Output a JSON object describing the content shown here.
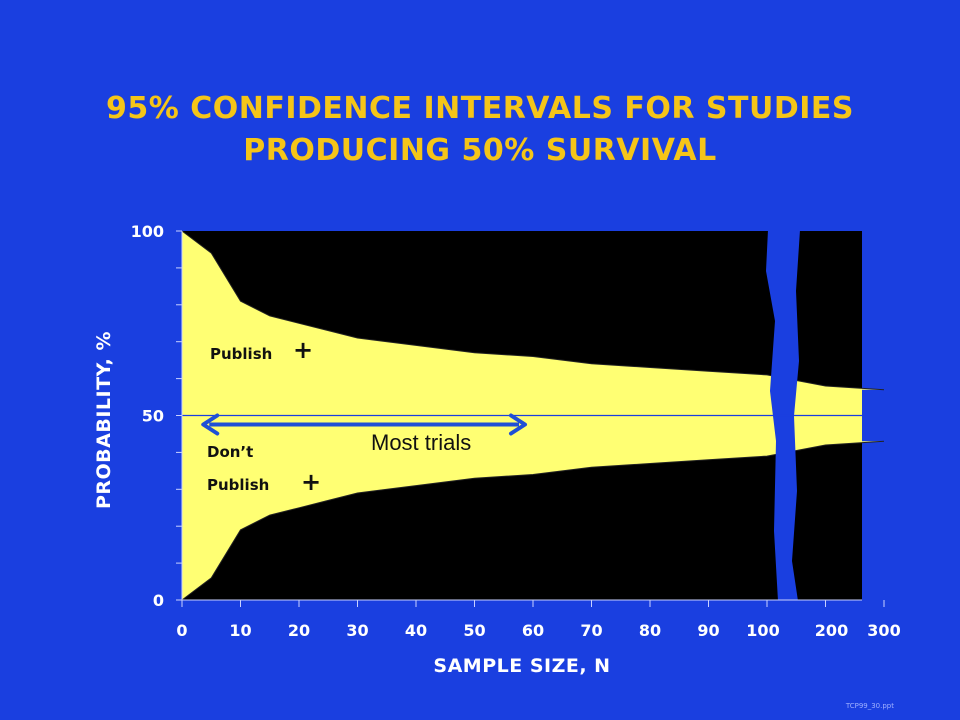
{
  "title": {
    "line1": "95% CONFIDENCE INTERVALS FOR STUDIES",
    "line2": "PRODUCING 50% SURVIVAL"
  },
  "footer_ref": "TCP99_30.ppt",
  "colors": {
    "background": "#1a3fe0",
    "title": "#f5c518",
    "band": "#ffff73",
    "outside": "#000000",
    "arrow": "#1f4fd6",
    "axis_text": "#ffffff"
  },
  "chart_data": {
    "type": "area",
    "title": "95% CONFIDENCE INTERVALS FOR STUDIES PRODUCING 50% SURVIVAL",
    "xlabel": "SAMPLE SIZE, N",
    "ylabel": "PROBABILITY, %",
    "ylim": [
      0,
      100
    ],
    "yticks": [
      "0",
      "50",
      "100"
    ],
    "xtick_labels": [
      "0",
      "10",
      "20",
      "30",
      "40",
      "50",
      "60",
      "70",
      "80",
      "90",
      "100",
      "200",
      "300"
    ],
    "x_axis_break": "between 100 and 200",
    "reference_line_y": 50,
    "series": [
      {
        "name": "upper 95% limit",
        "x": [
          0,
          5,
          10,
          15,
          20,
          25,
          30,
          40,
          50,
          60,
          70,
          80,
          90,
          100,
          200,
          300
        ],
        "values": [
          100,
          94,
          81,
          77,
          75,
          73,
          71,
          69,
          67,
          66,
          64,
          63,
          62,
          61,
          58,
          57
        ]
      },
      {
        "name": "lower 95% limit",
        "x": [
          0,
          5,
          10,
          15,
          20,
          25,
          30,
          40,
          50,
          60,
          70,
          80,
          90,
          100,
          200,
          300
        ],
        "values": [
          0,
          6,
          19,
          23,
          25,
          27,
          29,
          31,
          33,
          34,
          36,
          37,
          38,
          39,
          42,
          43
        ]
      }
    ],
    "annotations": {
      "publish_label": "Publish",
      "publish_plus": "+",
      "dont_label": "Don’t",
      "dont_label2": "Publish",
      "dont_plus": "+",
      "arrow_label": "Most trials",
      "arrow_x_range": [
        5,
        60
      ],
      "arrow_y": 50
    },
    "legend": "none",
    "grid": false
  }
}
